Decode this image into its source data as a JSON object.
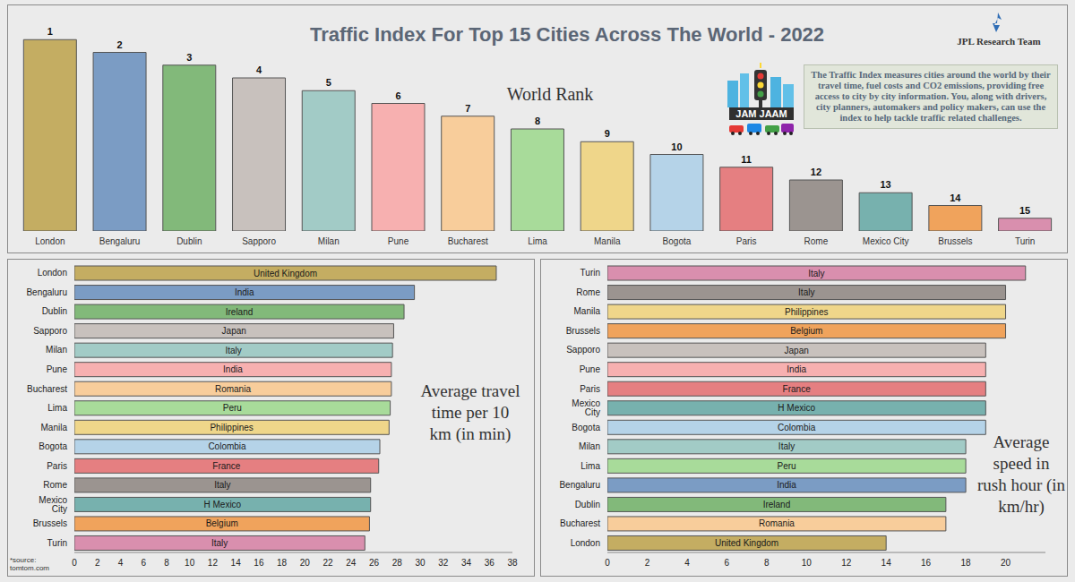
{
  "team": "JPL Research Team",
  "logo": "JAM JAAM",
  "description": "The Traffic Index measures cities around the world by their travel time, fuel costs and CO2 emissions, providing free access to city by city information. You, along with drivers, city planners, automakers and policy makers, can use the index to help tackle traffic related challenges.",
  "source": "*source: tomtom.com",
  "chart_data": [
    {
      "type": "bar",
      "title": "Traffic Index For Top 15 Cities Across The World - 2022",
      "subtitle": "World Rank",
      "categories": [
        "London",
        "Bengaluru",
        "Dublin",
        "Sapporo",
        "Milan",
        "Pune",
        "Bucharest",
        "Lima",
        "Manila",
        "Bogota",
        "Paris",
        "Rome",
        "Mexico City",
        "Brussels",
        "Turin"
      ],
      "values": [
        1,
        2,
        3,
        4,
        5,
        6,
        7,
        8,
        9,
        10,
        11,
        12,
        13,
        14,
        15
      ],
      "colors": [
        "#c4ad62",
        "#7b9cc4",
        "#82b97a",
        "#c8c1bd",
        "#a2cbc6",
        "#f7b0b0",
        "#f8cd9b",
        "#a8db9a",
        "#efd68a",
        "#b5d3e8",
        "#e57f81",
        "#9b9490",
        "#77b1ae",
        "#f0a35c",
        "#d98fae"
      ],
      "ylim": [
        16,
        0
      ],
      "data_labels": true,
      "tick_labels": "x"
    },
    {
      "type": "bar",
      "orientation": "horizontal",
      "title": "Average travel time per 10 km (in min)",
      "categories": [
        "London",
        "Bengaluru",
        "Dublin",
        "Sapporo",
        "Milan",
        "Pune",
        "Bucharest",
        "Lima",
        "Manila",
        "Bogota",
        "Paris",
        "Rome",
        "Mexico City",
        "Brussels",
        "Turin"
      ],
      "values": [
        36.6,
        29.5,
        28.6,
        27.7,
        27.6,
        27.5,
        27.5,
        27.4,
        27.3,
        26.5,
        26.4,
        25.7,
        25.7,
        25.6,
        25.2
      ],
      "bar_labels": [
        "United Kingdom",
        "India",
        "Ireland",
        "Japan",
        "Italy",
        "India",
        "Romania",
        "Peru",
        "Philippines",
        "Colombia",
        "France",
        "Italy",
        "H Mexico",
        "Belgium",
        "Italy"
      ],
      "colors": [
        "#c4ad62",
        "#7b9cc4",
        "#82b97a",
        "#c8c1bd",
        "#a2cbc6",
        "#f7b0b0",
        "#f8cd9b",
        "#a8db9a",
        "#efd68a",
        "#b5d3e8",
        "#e57f81",
        "#9b9490",
        "#77b1ae",
        "#f0a35c",
        "#d98fae"
      ],
      "xlim": [
        0,
        38
      ],
      "xticks": [
        0,
        2,
        4,
        6,
        8,
        10,
        12,
        14,
        16,
        18,
        20,
        22,
        24,
        26,
        28,
        30,
        32,
        34,
        36,
        38
      ]
    },
    {
      "type": "bar",
      "orientation": "horizontal",
      "title": "Average speed in rush hour (in km/hr)",
      "categories": [
        "Turin",
        "Rome",
        "Manila",
        "Brussels",
        "Sapporo",
        "Pune",
        "Paris",
        "Mexico City",
        "Bogota",
        "Milan",
        "Lima",
        "Bengaluru",
        "Dublin",
        "Bucharest",
        "London"
      ],
      "values": [
        21,
        20,
        20,
        20,
        19,
        19,
        19,
        19,
        19,
        18,
        18,
        18,
        17,
        17,
        14
      ],
      "bar_labels": [
        "Italy",
        "Italy",
        "Philippines",
        "Belgium",
        "Japan",
        "India",
        "France",
        "H Mexico",
        "Colombia",
        "Italy",
        "Peru",
        "India",
        "Ireland",
        "Romania",
        "United Kingdom"
      ],
      "colors": [
        "#d98fae",
        "#9b9490",
        "#efd68a",
        "#f0a35c",
        "#c8c1bd",
        "#f7b0b0",
        "#e57f81",
        "#77b1ae",
        "#b5d3e8",
        "#a2cbc6",
        "#a8db9a",
        "#7b9cc4",
        "#82b97a",
        "#f8cd9b",
        "#c4ad62"
      ],
      "xlim": [
        0,
        22
      ],
      "xticks": [
        0,
        2,
        4,
        6,
        8,
        10,
        12,
        14,
        16,
        18,
        20
      ]
    }
  ]
}
